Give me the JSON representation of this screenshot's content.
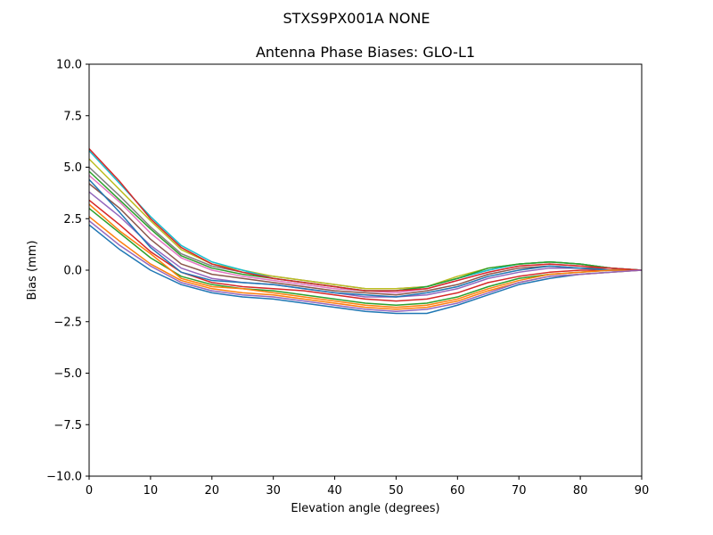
{
  "chart_data": {
    "type": "line",
    "suptitle": "STXS9PX001A     NONE",
    "title": "Antenna Phase Biases: GLO-L1",
    "xlabel": "Elevation angle (degrees)",
    "ylabel": "Bias (mm)",
    "xlim": [
      0,
      90
    ],
    "ylim": [
      -10,
      10
    ],
    "xticks": [
      0,
      10,
      20,
      30,
      40,
      50,
      60,
      70,
      80,
      90
    ],
    "xtick_labels": [
      "0",
      "10",
      "20",
      "30",
      "40",
      "50",
      "60",
      "70",
      "80",
      "90"
    ],
    "yticks": [
      -10,
      -7.5,
      -5,
      -2.5,
      0,
      2.5,
      5,
      7.5,
      10
    ],
    "ytick_labels": [
      "−10.0",
      "−7.5",
      "−5.0",
      "−2.5",
      "0.0",
      "2.5",
      "5.0",
      "7.5",
      "10.0"
    ],
    "grid": false,
    "x": [
      0,
      5,
      10,
      15,
      20,
      25,
      30,
      35,
      40,
      45,
      50,
      55,
      60,
      65,
      70,
      75,
      80,
      85,
      90
    ],
    "series": [
      {
        "color": "#1f77b4",
        "values": [
          2.2,
          1.0,
          0.0,
          -0.7,
          -1.1,
          -1.3,
          -1.4,
          -1.6,
          -1.8,
          -2.0,
          -2.1,
          -2.1,
          -1.7,
          -1.2,
          -0.7,
          -0.4,
          -0.2,
          -0.1,
          0.0
        ]
      },
      {
        "color": "#ff7f0e",
        "values": [
          2.6,
          1.4,
          0.3,
          -0.5,
          -0.9,
          -1.1,
          -1.2,
          -1.4,
          -1.6,
          -1.8,
          -1.9,
          -1.8,
          -1.5,
          -1.0,
          -0.6,
          -0.3,
          -0.2,
          -0.1,
          0.0
        ]
      },
      {
        "color": "#2ca02c",
        "values": [
          3.0,
          1.8,
          0.6,
          -0.3,
          -0.7,
          -0.9,
          -1.0,
          -1.2,
          -1.4,
          -1.6,
          -1.7,
          -1.6,
          -1.3,
          -0.8,
          -0.4,
          -0.2,
          -0.1,
          0.0,
          0.0
        ]
      },
      {
        "color": "#d62728",
        "values": [
          3.4,
          2.2,
          0.9,
          -0.1,
          -0.6,
          -0.8,
          -0.9,
          -1.0,
          -1.2,
          -1.4,
          -1.5,
          -1.4,
          -1.1,
          -0.6,
          -0.3,
          -0.1,
          0.0,
          0.0,
          0.0
        ]
      },
      {
        "color": "#9467bd",
        "values": [
          3.8,
          2.6,
          1.2,
          0.1,
          -0.4,
          -0.6,
          -0.7,
          -0.9,
          -1.1,
          -1.3,
          -1.3,
          -1.2,
          -0.9,
          -0.4,
          -0.1,
          0.1,
          0.1,
          0.0,
          0.0
        ]
      },
      {
        "color": "#8c564b",
        "values": [
          4.2,
          3.0,
          1.5,
          0.3,
          -0.2,
          -0.4,
          -0.6,
          -0.8,
          -1.0,
          -1.1,
          -1.2,
          -1.0,
          -0.7,
          -0.2,
          0.1,
          0.2,
          0.1,
          0.1,
          0.0
        ]
      },
      {
        "color": "#e377c2",
        "values": [
          4.6,
          3.3,
          1.8,
          0.6,
          0.0,
          -0.3,
          -0.5,
          -0.7,
          -0.9,
          -1.0,
          -1.1,
          -0.9,
          -0.5,
          -0.1,
          0.2,
          0.3,
          0.2,
          0.1,
          0.0
        ]
      },
      {
        "color": "#7f7f7f",
        "values": [
          5.0,
          3.6,
          2.1,
          0.8,
          0.2,
          -0.1,
          -0.3,
          -0.5,
          -0.7,
          -0.9,
          -0.9,
          -0.8,
          -0.4,
          0.0,
          0.3,
          0.4,
          0.3,
          0.1,
          0.0
        ]
      },
      {
        "color": "#bcbd22",
        "values": [
          5.4,
          3.9,
          2.4,
          1.0,
          0.3,
          0.0,
          -0.3,
          -0.5,
          -0.7,
          -0.9,
          -0.9,
          -0.8,
          -0.3,
          0.1,
          0.3,
          0.4,
          0.3,
          0.1,
          0.0
        ]
      },
      {
        "color": "#17becf",
        "values": [
          5.8,
          4.2,
          2.6,
          1.2,
          0.4,
          0.0,
          -0.4,
          -0.6,
          -0.8,
          -1.0,
          -1.0,
          -0.8,
          -0.4,
          0.0,
          0.3,
          0.4,
          0.3,
          0.1,
          0.0
        ]
      },
      {
        "color": "#1f77b4",
        "values": [
          4.4,
          2.8,
          1.1,
          -0.1,
          -0.5,
          -0.6,
          -0.7,
          -0.9,
          -1.1,
          -1.2,
          -1.3,
          -1.1,
          -0.8,
          -0.3,
          0.0,
          0.2,
          0.1,
          0.0,
          0.0
        ]
      },
      {
        "color": "#ff7f0e",
        "values": [
          3.2,
          1.9,
          0.8,
          -0.4,
          -0.8,
          -0.9,
          -1.1,
          -1.3,
          -1.5,
          -1.7,
          -1.8,
          -1.7,
          -1.4,
          -0.9,
          -0.5,
          -0.2,
          -0.1,
          0.0,
          0.0
        ]
      },
      {
        "color": "#2ca02c",
        "values": [
          4.8,
          3.4,
          2.0,
          0.7,
          0.1,
          -0.2,
          -0.4,
          -0.6,
          -0.8,
          -1.0,
          -1.0,
          -0.8,
          -0.4,
          0.1,
          0.3,
          0.4,
          0.3,
          0.1,
          0.0
        ]
      },
      {
        "color": "#d62728",
        "values": [
          5.9,
          4.3,
          2.5,
          1.1,
          0.3,
          -0.1,
          -0.4,
          -0.6,
          -0.8,
          -1.0,
          -1.0,
          -0.9,
          -0.5,
          -0.1,
          0.2,
          0.3,
          0.2,
          0.1,
          0.0
        ]
      },
      {
        "color": "#9467bd",
        "values": [
          2.4,
          1.2,
          0.2,
          -0.6,
          -1.0,
          -1.2,
          -1.3,
          -1.5,
          -1.7,
          -1.9,
          -2.0,
          -1.9,
          -1.6,
          -1.1,
          -0.6,
          -0.3,
          -0.2,
          -0.1,
          0.0
        ]
      }
    ]
  }
}
